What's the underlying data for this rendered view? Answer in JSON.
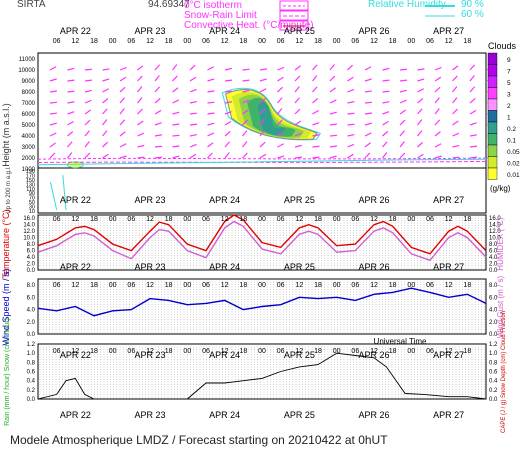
{
  "header": {
    "site": "SIRTA",
    "coords": "94.69347",
    "legend_isotherm": "0°C isotherm",
    "legend_snow_rain": "Snow-Rain Limit",
    "legend_convective": "Convective Heat. (°C/minute)",
    "legend_rh_label": "Relative Humidity",
    "legend_rh_90": "90 %",
    "legend_rh_60": "60 %"
  },
  "days": [
    "APR 22",
    "APR 23",
    "APR 24",
    "APR 25",
    "APR 26",
    "APR 27"
  ],
  "hour_ticks": [
    "06",
    "12",
    "18",
    "00",
    "06",
    "12",
    "18",
    "00",
    "06",
    "12",
    "18",
    "00",
    "06",
    "12",
    "18",
    "00",
    "06",
    "12",
    "18",
    "00",
    "06",
    "12",
    "18"
  ],
  "clouds": {
    "title": "Clouds",
    "unit": "(g/kg)",
    "levels": [
      "9",
      "7",
      "5",
      "3",
      "2",
      "1",
      "0.2",
      "0.1",
      "0.05",
      "0.02",
      "0.01"
    ],
    "colors": [
      "#9a00d6",
      "#b000ee",
      "#d020ff",
      "#ff40ff",
      "#ff90ff",
      "#1e6e9e",
      "#2f9f8f",
      "#3fb36a",
      "#8dd34a",
      "#d4ea2a",
      "#ffff30"
    ]
  },
  "xlabel": "Universal Time",
  "footer": "Modele Atmospherique LMDZ / Forecast starting on 20210422 at 0hUT",
  "chart_data": [
    {
      "type": "heatmap",
      "ylabel": "Height (m a.s.l.)",
      "ylabel_low": "Up to 200 m a.g.l.",
      "yticks_upper": [
        11000,
        10000,
        9000,
        8000,
        7000,
        6000,
        5000,
        4000,
        3000,
        2000,
        1000
      ],
      "yticks_lower": [
        190,
        170,
        150,
        130,
        110,
        90,
        70,
        50,
        30,
        10
      ],
      "cloud_band": {
        "start": "APR 24 12h",
        "end": "APR 25 18h",
        "base_m": 3800,
        "top_m": 8300,
        "max_gkg": 1
      }
    },
    {
      "type": "line",
      "ylabel": "Temperature (°C)",
      "ylabel_right": "HUMIDEX (°C)",
      "yticks": [
        0.0,
        2.0,
        4.0,
        6.0,
        8.0,
        10.0,
        12.0,
        14.0,
        16.0
      ],
      "ylim": [
        0,
        17
      ],
      "x_hours": [
        0,
        6,
        12,
        15,
        18,
        24,
        30,
        36,
        39,
        42,
        48,
        54,
        60,
        63,
        66,
        72,
        78,
        84,
        87,
        90,
        96,
        102,
        108,
        111,
        114,
        120,
        126,
        132,
        135,
        138,
        144
      ],
      "series": [
        {
          "color": "#e00000",
          "values": [
            7.5,
            9.5,
            13.0,
            13.5,
            12.5,
            8.0,
            6.0,
            12.0,
            14.8,
            14.0,
            8.0,
            6.0,
            15.0,
            17.0,
            15.5,
            8.5,
            7.0,
            13.0,
            14.0,
            13.0,
            7.5,
            8.0,
            14.0,
            15.0,
            13.5,
            7.0,
            5.0,
            12.0,
            13.5,
            12.0,
            6.0
          ]
        },
        {
          "color": "#d060d0",
          "values": [
            5.5,
            7.5,
            11.0,
            11.5,
            10.5,
            6.0,
            3.5,
            10.0,
            12.5,
            12.0,
            6.0,
            3.8,
            13.0,
            15.0,
            13.5,
            6.5,
            5.0,
            11.0,
            12.0,
            11.0,
            5.5,
            6.0,
            12.0,
            13.0,
            11.5,
            5.0,
            3.0,
            10.0,
            11.5,
            10.0,
            4.0
          ]
        }
      ]
    },
    {
      "type": "line",
      "ylabel": "Wind Speed (m / s)",
      "ylabel_right": "Wind Gust (m / s)",
      "yticks": [
        0.0,
        2.0,
        4.0,
        6.0,
        8.0
      ],
      "ylim": [
        0,
        9
      ],
      "x_hours": [
        0,
        6,
        12,
        18,
        24,
        30,
        36,
        42,
        48,
        54,
        60,
        66,
        72,
        78,
        84,
        90,
        96,
        102,
        108,
        114,
        120,
        126,
        132,
        138,
        144
      ],
      "series": [
        {
          "color": "#0000cc",
          "values": [
            4.2,
            3.8,
            4.5,
            3.0,
            3.8,
            4.0,
            5.8,
            5.5,
            4.8,
            5.0,
            5.5,
            4.0,
            4.5,
            4.8,
            6.0,
            5.8,
            6.0,
            5.5,
            6.5,
            6.8,
            7.5,
            6.8,
            6.0,
            6.5,
            5.0
          ]
        }
      ]
    },
    {
      "type": "area",
      "ylabel": "Rain (mm / hour) Snow (cm / hour)",
      "ylabel_right": "CAPE (J / g) Snow Depth (cm) Cloud Fraction",
      "yticks": [
        0.0,
        0.2,
        0.4,
        0.6,
        0.8,
        1.0,
        1.2
      ],
      "ylim": [
        0,
        1.2
      ],
      "x_hours": [
        0,
        6,
        9,
        12,
        15,
        18,
        24,
        36,
        48,
        54,
        60,
        66,
        72,
        78,
        84,
        90,
        96,
        102,
        108,
        112,
        118,
        124,
        132,
        138,
        144
      ],
      "series": [
        {
          "color": "#000000",
          "values": [
            0.0,
            0.1,
            0.4,
            0.45,
            0.1,
            0.0,
            0.0,
            0.0,
            0.0,
            0.35,
            0.35,
            0.4,
            0.45,
            0.6,
            0.7,
            0.75,
            1.0,
            0.95,
            0.9,
            0.7,
            0.12,
            0.1,
            0.05,
            0.05,
            0.0
          ]
        }
      ]
    }
  ]
}
